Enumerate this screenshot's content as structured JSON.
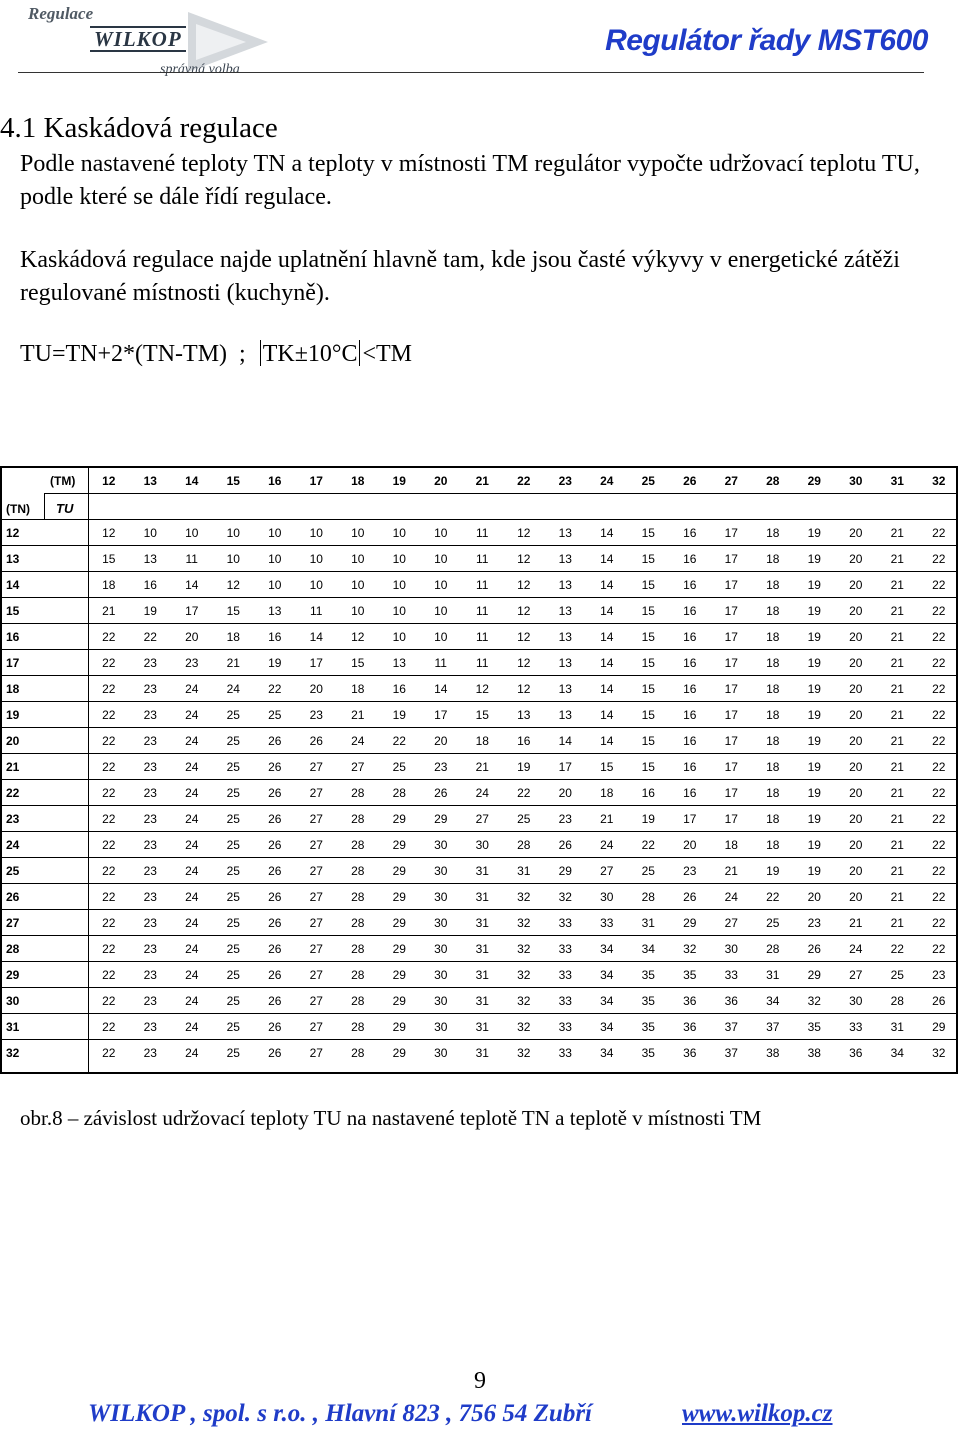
{
  "header": {
    "logo_top": "Regulace",
    "logo_main": "WILKOP",
    "logo_sub": "správná volba",
    "doc_title": "Regulátor řady  MST600"
  },
  "section": {
    "heading": "4.1 Kaskádová regulace",
    "paragraph1": "Podle nastavené teploty TN a teploty v místnosti TM regulátor vypočte udržovací teplotu TU, podle které se dále řídí regulace.",
    "paragraph2": "Kaskádová regulace najde uplatnění hlavně tam, kde jsou časté výkyvy v energetické zátěži regulované místnosti (kuchyně).",
    "formula_left": "TU=TN+2*(TN-TM)  ;  ",
    "formula_mid": "TK±10°C",
    "formula_right": "<TM"
  },
  "table": {
    "tm_label": "(TM)",
    "tn_label": "(TN)",
    "tu_label": "TU",
    "tm_values": [
      "12",
      "13",
      "14",
      "15",
      "16",
      "17",
      "18",
      "19",
      "20",
      "21",
      "22",
      "23",
      "24",
      "25",
      "26",
      "27",
      "28",
      "29",
      "30",
      "31",
      "32"
    ],
    "rows": [
      {
        "tn": "12",
        "values": [
          "12",
          "10",
          "10",
          "10",
          "10",
          "10",
          "10",
          "10",
          "10",
          "11",
          "12",
          "13",
          "14",
          "15",
          "16",
          "17",
          "18",
          "19",
          "20",
          "21",
          "22"
        ]
      },
      {
        "tn": "13",
        "values": [
          "15",
          "13",
          "11",
          "10",
          "10",
          "10",
          "10",
          "10",
          "10",
          "11",
          "12",
          "13",
          "14",
          "15",
          "16",
          "17",
          "18",
          "19",
          "20",
          "21",
          "22"
        ]
      },
      {
        "tn": "14",
        "values": [
          "18",
          "16",
          "14",
          "12",
          "10",
          "10",
          "10",
          "10",
          "10",
          "11",
          "12",
          "13",
          "14",
          "15",
          "16",
          "17",
          "18",
          "19",
          "20",
          "21",
          "22"
        ]
      },
      {
        "tn": "15",
        "values": [
          "21",
          "19",
          "17",
          "15",
          "13",
          "11",
          "10",
          "10",
          "10",
          "11",
          "12",
          "13",
          "14",
          "15",
          "16",
          "17",
          "18",
          "19",
          "20",
          "21",
          "22"
        ]
      },
      {
        "tn": "16",
        "values": [
          "22",
          "22",
          "20",
          "18",
          "16",
          "14",
          "12",
          "10",
          "10",
          "11",
          "12",
          "13",
          "14",
          "15",
          "16",
          "17",
          "18",
          "19",
          "20",
          "21",
          "22"
        ]
      },
      {
        "tn": "17",
        "values": [
          "22",
          "23",
          "23",
          "21",
          "19",
          "17",
          "15",
          "13",
          "11",
          "11",
          "12",
          "13",
          "14",
          "15",
          "16",
          "17",
          "18",
          "19",
          "20",
          "21",
          "22"
        ]
      },
      {
        "tn": "18",
        "values": [
          "22",
          "23",
          "24",
          "24",
          "22",
          "20",
          "18",
          "16",
          "14",
          "12",
          "12",
          "13",
          "14",
          "15",
          "16",
          "17",
          "18",
          "19",
          "20",
          "21",
          "22"
        ]
      },
      {
        "tn": "19",
        "values": [
          "22",
          "23",
          "24",
          "25",
          "25",
          "23",
          "21",
          "19",
          "17",
          "15",
          "13",
          "13",
          "14",
          "15",
          "16",
          "17",
          "18",
          "19",
          "20",
          "21",
          "22"
        ]
      },
      {
        "tn": "20",
        "values": [
          "22",
          "23",
          "24",
          "25",
          "26",
          "26",
          "24",
          "22",
          "20",
          "18",
          "16",
          "14",
          "14",
          "15",
          "16",
          "17",
          "18",
          "19",
          "20",
          "21",
          "22"
        ]
      },
      {
        "tn": "21",
        "values": [
          "22",
          "23",
          "24",
          "25",
          "26",
          "27",
          "27",
          "25",
          "23",
          "21",
          "19",
          "17",
          "15",
          "15",
          "16",
          "17",
          "18",
          "19",
          "20",
          "21",
          "22"
        ]
      },
      {
        "tn": "22",
        "values": [
          "22",
          "23",
          "24",
          "25",
          "26",
          "27",
          "28",
          "28",
          "26",
          "24",
          "22",
          "20",
          "18",
          "16",
          "16",
          "17",
          "18",
          "19",
          "20",
          "21",
          "22"
        ]
      },
      {
        "tn": "23",
        "values": [
          "22",
          "23",
          "24",
          "25",
          "26",
          "27",
          "28",
          "29",
          "29",
          "27",
          "25",
          "23",
          "21",
          "19",
          "17",
          "17",
          "18",
          "19",
          "20",
          "21",
          "22"
        ]
      },
      {
        "tn": "24",
        "values": [
          "22",
          "23",
          "24",
          "25",
          "26",
          "27",
          "28",
          "29",
          "30",
          "30",
          "28",
          "26",
          "24",
          "22",
          "20",
          "18",
          "18",
          "19",
          "20",
          "21",
          "22"
        ]
      },
      {
        "tn": "25",
        "values": [
          "22",
          "23",
          "24",
          "25",
          "26",
          "27",
          "28",
          "29",
          "30",
          "31",
          "31",
          "29",
          "27",
          "25",
          "23",
          "21",
          "19",
          "19",
          "20",
          "21",
          "22"
        ]
      },
      {
        "tn": "26",
        "values": [
          "22",
          "23",
          "24",
          "25",
          "26",
          "27",
          "28",
          "29",
          "30",
          "31",
          "32",
          "32",
          "30",
          "28",
          "26",
          "24",
          "22",
          "20",
          "20",
          "21",
          "22"
        ]
      },
      {
        "tn": "27",
        "values": [
          "22",
          "23",
          "24",
          "25",
          "26",
          "27",
          "28",
          "29",
          "30",
          "31",
          "32",
          "33",
          "33",
          "31",
          "29",
          "27",
          "25",
          "23",
          "21",
          "21",
          "22"
        ]
      },
      {
        "tn": "28",
        "values": [
          "22",
          "23",
          "24",
          "25",
          "26",
          "27",
          "28",
          "29",
          "30",
          "31",
          "32",
          "33",
          "34",
          "34",
          "32",
          "30",
          "28",
          "26",
          "24",
          "22",
          "22"
        ]
      },
      {
        "tn": "29",
        "values": [
          "22",
          "23",
          "24",
          "25",
          "26",
          "27",
          "28",
          "29",
          "30",
          "31",
          "32",
          "33",
          "34",
          "35",
          "35",
          "33",
          "31",
          "29",
          "27",
          "25",
          "23"
        ]
      },
      {
        "tn": "30",
        "values": [
          "22",
          "23",
          "24",
          "25",
          "26",
          "27",
          "28",
          "29",
          "30",
          "31",
          "32",
          "33",
          "34",
          "35",
          "36",
          "36",
          "34",
          "32",
          "30",
          "28",
          "26"
        ]
      },
      {
        "tn": "31",
        "values": [
          "22",
          "23",
          "24",
          "25",
          "26",
          "27",
          "28",
          "29",
          "30",
          "31",
          "32",
          "33",
          "34",
          "35",
          "36",
          "37",
          "37",
          "35",
          "33",
          "31",
          "29"
        ]
      },
      {
        "tn": "32",
        "values": [
          "22",
          "23",
          "24",
          "25",
          "26",
          "27",
          "28",
          "29",
          "30",
          "31",
          "32",
          "33",
          "34",
          "35",
          "36",
          "37",
          "38",
          "38",
          "36",
          "34",
          "32"
        ]
      }
    ]
  },
  "caption": "obr.8 – závislost udržovací teploty TU na nastavené teplotě TN a teplotě v místnosti TM",
  "footer": {
    "page_number": "9",
    "company": "WILKOP , spol. s r.o. , Hlavní 823 , 756 54 Zubří",
    "website": "www.wilkop.cz"
  },
  "colors": {
    "title_blue": "#1f3cc8",
    "logo_gray": "#505a64"
  }
}
